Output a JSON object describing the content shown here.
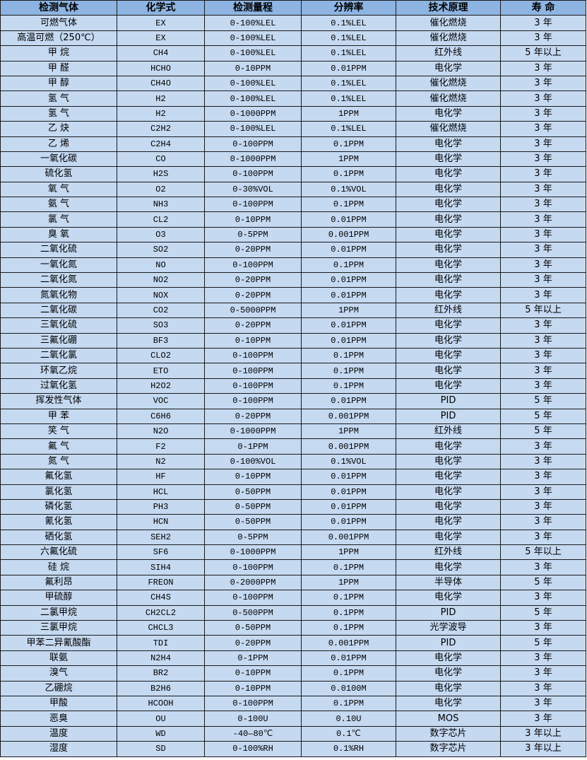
{
  "colors": {
    "header_bg": "#8db4e2",
    "row_bg": "#c5d9f1",
    "border": "#1a1a1a"
  },
  "table": {
    "headers": [
      "检测气体",
      "化学式",
      "检测量程",
      "分辨率",
      "技术原理",
      "寿 命"
    ],
    "rows": [
      [
        "可燃气体",
        "EX",
        "0-100%LEL",
        "0.1%LEL",
        "催化燃烧",
        "3 年"
      ],
      [
        "高温可燃（250℃）",
        "EX",
        "0-100%LEL",
        "0.1%LEL",
        "催化燃烧",
        "3 年"
      ],
      [
        "甲 烷",
        "CH4",
        "0-100%LEL",
        "0.1%LEL",
        "红外线",
        "5 年以上"
      ],
      [
        "甲 醛",
        "HCHO",
        "0-10PPM",
        "0.01PPM",
        "电化学",
        "3 年"
      ],
      [
        "甲 醇",
        "CH4O",
        "0-100%LEL",
        "0.1%LEL",
        "催化燃烧",
        "3 年"
      ],
      [
        "氢 气",
        "H2",
        "0-100%LEL",
        "0.1%LEL",
        "催化燃烧",
        "3 年"
      ],
      [
        "氢 气",
        "H2",
        "0-1000PPM",
        "1PPM",
        "电化学",
        "3 年"
      ],
      [
        "乙 炔",
        "C2H2",
        "0-100%LEL",
        "0.1%LEL",
        "催化燃烧",
        "3 年"
      ],
      [
        "乙 烯",
        "C2H4",
        "0-100PPM",
        "0.1PPM",
        "电化学",
        "3 年"
      ],
      [
        "一氧化碳",
        "CO",
        "0-1000PPM",
        "1PPM",
        "电化学",
        "3 年"
      ],
      [
        "硫化氢",
        "H2S",
        "0-100PPM",
        "0.1PPM",
        "电化学",
        "3 年"
      ],
      [
        "氧 气",
        "O2",
        "0-30%VOL",
        "0.1%VOL",
        "电化学",
        "3 年"
      ],
      [
        "氨 气",
        "NH3",
        "0-100PPM",
        "0.1PPM",
        "电化学",
        "3 年"
      ],
      [
        "氯 气",
        "CL2",
        "0-10PPM",
        "0.01PPM",
        "电化学",
        "3 年"
      ],
      [
        "臭 氧",
        "O3",
        "0-5PPM",
        "0.001PPM",
        "电化学",
        "3 年"
      ],
      [
        "二氧化硫",
        "SO2",
        "0-20PPM",
        "0.01PPM",
        "电化学",
        "3 年"
      ],
      [
        "一氧化氮",
        "NO",
        "0-100PPM",
        "0.1PPM",
        "电化学",
        "3 年"
      ],
      [
        "二氧化氮",
        "NO2",
        "0-20PPM",
        "0.01PPM",
        "电化学",
        "3 年"
      ],
      [
        "氮氧化物",
        "NOX",
        "0-20PPM",
        "0.01PPM",
        "电化学",
        "3 年"
      ],
      [
        "二氧化碳",
        "CO2",
        "0-5000PPM",
        "1PPM",
        "红外线",
        "5 年以上"
      ],
      [
        "三氧化硫",
        "SO3",
        "0-20PPM",
        "0.01PPM",
        "电化学",
        "3 年"
      ],
      [
        "三氟化硼",
        "BF3",
        "0-10PPM",
        "0.01PPM",
        "电化学",
        "3 年"
      ],
      [
        "二氧化氯",
        "CLO2",
        "0-100PPM",
        "0.1PPM",
        "电化学",
        "3 年"
      ],
      [
        "环氧乙烷",
        "ETO",
        "0-100PPM",
        "0.1PPM",
        "电化学",
        "3 年"
      ],
      [
        "过氧化氢",
        "H2O2",
        "0-100PPM",
        "0.1PPM",
        "电化学",
        "3 年"
      ],
      [
        "挥发性气体",
        "VOC",
        "0-100PPM",
        "0.01PPM",
        "PID",
        "5 年"
      ],
      [
        "甲 苯",
        "C6H6",
        "0-20PPM",
        "0.001PPM",
        "PID",
        "5 年"
      ],
      [
        "笑 气",
        "N2O",
        "0-1000PPM",
        "1PPM",
        "红外线",
        "5 年"
      ],
      [
        "氟 气",
        "F2",
        "0-1PPM",
        "0.001PPM",
        "电化学",
        "3 年"
      ],
      [
        "氮 气",
        "N2",
        "0-100%VOL",
        "0.1%VOL",
        "电化学",
        "3 年"
      ],
      [
        "氟化氢",
        "HF",
        "0-10PPM",
        "0.01PPM",
        "电化学",
        "3 年"
      ],
      [
        "氯化氢",
        "HCL",
        "0-50PPM",
        "0.01PPM",
        "电化学",
        "3 年"
      ],
      [
        "磷化氢",
        "PH3",
        "0-50PPM",
        "0.01PPM",
        "电化学",
        "3 年"
      ],
      [
        "氰化氢",
        "HCN",
        "0-50PPM",
        "0.01PPM",
        "电化学",
        "3 年"
      ],
      [
        "硒化氢",
        "SEH2",
        "0-5PPM",
        "0.001PPM",
        "电化学",
        "3 年"
      ],
      [
        "六氟化硫",
        "SF6",
        "0-1000PPM",
        "1PPM",
        "红外线",
        "5 年以上"
      ],
      [
        "硅 烷",
        "SIH4",
        "0-100PPM",
        "0.1PPM",
        "电化学",
        "3 年"
      ],
      [
        "氟利昂",
        "FREON",
        "0-2000PPM",
        "1PPM",
        "半导体",
        "5 年"
      ],
      [
        "甲硫醇",
        "CH4S",
        "0-100PPM",
        "0.1PPM",
        "电化学",
        "3 年"
      ],
      [
        "二氯甲烷",
        "CH2CL2",
        "0-500PPM",
        "0.1PPM",
        "PID",
        "5 年"
      ],
      [
        "三氯甲烷",
        "CHCL3",
        "0-50PPM",
        "0.1PPM",
        "光学波导",
        "3 年"
      ],
      [
        "甲苯二异氰酸酯",
        "TDI",
        "0-20PPM",
        "0.001PPM",
        "PID",
        "5 年"
      ],
      [
        "联氨",
        "N2H4",
        "0-1PPM",
        "0.01PPM",
        "电化学",
        "3 年"
      ],
      [
        "溴气",
        "BR2",
        "0-10PPM",
        "0.1PPM",
        "电化学",
        "3 年"
      ],
      [
        "乙硼烷",
        "B2H6",
        "0-10PPM",
        "0.0100M",
        "电化学",
        "3 年"
      ],
      [
        "甲酸",
        "HCOOH",
        "0-100PPM",
        "0.1PPM",
        "电化学",
        "3 年"
      ],
      [
        "恶臭",
        "OU",
        "0-100U",
        "0.10U",
        "MOS",
        "3 年"
      ],
      [
        "温度",
        "WD",
        "-40—80℃",
        "0.1℃",
        "数字芯片",
        "3 年以上"
      ],
      [
        "湿度",
        "SD",
        "0-100%RH",
        "0.1%RH",
        "数字芯片",
        "3 年以上"
      ]
    ]
  }
}
